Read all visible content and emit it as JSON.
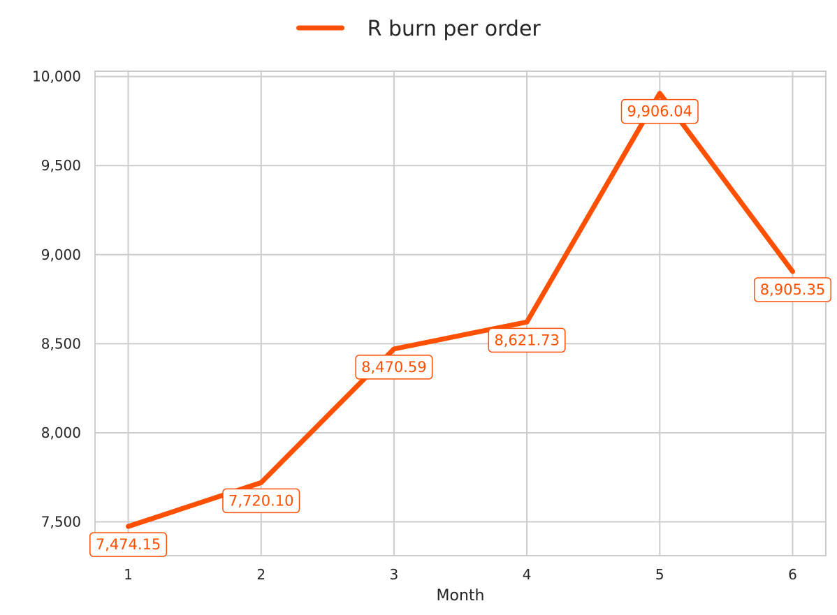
{
  "chart_data": {
    "type": "line",
    "x": [
      1,
      2,
      3,
      4,
      5,
      6
    ],
    "xticks": [
      "1",
      "2",
      "3",
      "4",
      "5",
      "6"
    ],
    "xlim": [
      0.75,
      6.25
    ],
    "ylim": [
      7310,
      10030
    ],
    "yticks": [
      7500,
      8000,
      8500,
      9000,
      9500,
      10000
    ],
    "ytick_labels": [
      "7,500",
      "8,000",
      "8,500",
      "9,000",
      "9,500",
      "10,000"
    ],
    "xlabel": "Month",
    "ylabel": "",
    "grid": true,
    "legend_position": "top-center",
    "series": [
      {
        "name": "R burn per order",
        "color": "#FF4F00",
        "values": [
          7474.15,
          7720.1,
          8470.59,
          8621.73,
          9906.04,
          8905.35
        ],
        "labels": [
          "7,474.15",
          "7,720.10",
          "8,470.59",
          "8,621.73",
          "9,906.04",
          "8,905.35"
        ]
      }
    ]
  }
}
